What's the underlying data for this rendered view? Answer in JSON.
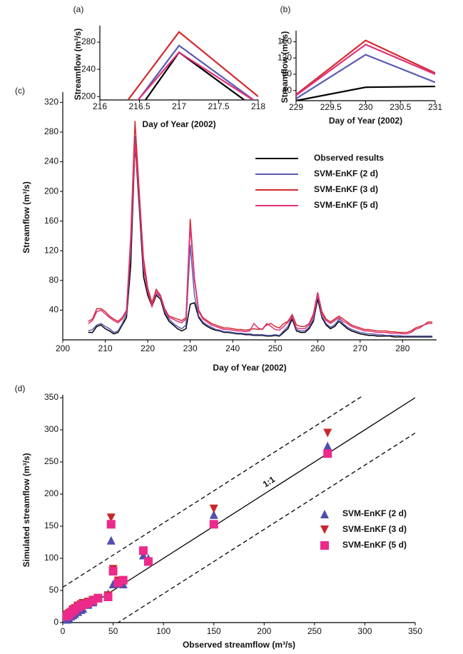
{
  "chart_data": [
    {
      "type": "line",
      "panel_label": "(a)",
      "x_label": "Day of Year (2002)",
      "y_label": "Streamflow (m³/s)",
      "x": [
        216,
        217,
        218
      ],
      "xlim": [
        216,
        218
      ],
      "xticks": [
        216,
        216.5,
        217,
        217.5,
        218
      ],
      "ylim": [
        195,
        300
      ],
      "yticks": [
        200,
        240,
        280
      ],
      "series": [
        {
          "color": "#000000",
          "values": [
            100,
            265,
            180
          ]
        },
        {
          "color": "#5b5bb5",
          "values": [
            120,
            275,
            190
          ]
        },
        {
          "color": "#d42a2f",
          "values": [
            140,
            295,
            200
          ]
        },
        {
          "color": "#e0307a",
          "values": [
            130,
            265,
            190
          ]
        }
      ]
    },
    {
      "type": "line",
      "panel_label": "(b)",
      "x_label": "Day of Year (2002)",
      "y_label": "Streamflow (m³/s)",
      "x": [
        229,
        230,
        231
      ],
      "xlim": [
        229,
        231
      ],
      "xticks": [
        229,
        229.5,
        230,
        230.5,
        231
      ],
      "ylim": [
        15,
        180
      ],
      "yticks": [
        40,
        80,
        120,
        160
      ],
      "series": [
        {
          "color": "#000000",
          "values": [
            15,
            48,
            50
          ]
        },
        {
          "color": "#5b5bb5",
          "values": [
            20,
            128,
            60
          ]
        },
        {
          "color": "#d42a2f",
          "values": [
            30,
            163,
            83
          ]
        },
        {
          "color": "#e0307a",
          "values": [
            28,
            153,
            80
          ]
        }
      ]
    },
    {
      "type": "line",
      "panel_label": "(c)",
      "x_label": "Day of Year (2002)",
      "y_label": "Streamflow (m³/s)",
      "legend": "right",
      "x": [
        206,
        207,
        208,
        209,
        210,
        211,
        212,
        213,
        214,
        215,
        216,
        217,
        218,
        219,
        220,
        221,
        222,
        223,
        224,
        225,
        226,
        227,
        228,
        229,
        230,
        231,
        232,
        233,
        234,
        235,
        236,
        237,
        238,
        239,
        240,
        241,
        242,
        243,
        244,
        245,
        246,
        247,
        248,
        249,
        250,
        251,
        252,
        253,
        254,
        255,
        256,
        257,
        258,
        259,
        260,
        261,
        262,
        263,
        264,
        265,
        266,
        267,
        268,
        269,
        270,
        271,
        272,
        273,
        274,
        275,
        276,
        277,
        278,
        279,
        280,
        281,
        282,
        283,
        284,
        285,
        286,
        287
      ],
      "xlim": [
        200,
        288
      ],
      "xticks": [
        200,
        210,
        220,
        230,
        240,
        250,
        260,
        270,
        280
      ],
      "ylim": [
        0,
        330
      ],
      "yticks": [
        40,
        80,
        120,
        160,
        200,
        240,
        280,
        320
      ],
      "series": [
        {
          "name": "Observed results",
          "color": "#000000",
          "values": [
            10,
            10,
            18,
            20,
            15,
            12,
            8,
            10,
            20,
            30,
            100,
            265,
            180,
            85,
            60,
            45,
            60,
            55,
            35,
            25,
            20,
            15,
            12,
            15,
            48,
            50,
            30,
            22,
            18,
            15,
            13,
            12,
            10,
            10,
            9,
            8,
            8,
            7,
            7,
            6,
            6,
            6,
            5,
            5,
            6,
            5,
            10,
            15,
            28,
            12,
            10,
            10,
            15,
            25,
            55,
            30,
            20,
            15,
            18,
            25,
            20,
            15,
            12,
            10,
            8,
            7,
            6,
            6,
            5,
            5,
            5,
            5,
            4,
            4,
            4,
            4,
            4,
            4,
            4,
            4,
            4,
            4
          ]
        },
        {
          "name": "SVM-EnKF (2 d)",
          "color": "#5b5bb5",
          "values": [
            12,
            14,
            20,
            22,
            18,
            15,
            10,
            12,
            22,
            35,
            120,
            275,
            190,
            95,
            65,
            48,
            62,
            58,
            38,
            28,
            22,
            18,
            15,
            20,
            128,
            60,
            32,
            24,
            20,
            17,
            14,
            13,
            11,
            11,
            10,
            9,
            9,
            8,
            8,
            7,
            7,
            7,
            6,
            6,
            7,
            6,
            12,
            18,
            32,
            14,
            12,
            12,
            17,
            28,
            60,
            32,
            22,
            17,
            20,
            28,
            22,
            17,
            14,
            12,
            10,
            9,
            8,
            8,
            7,
            7,
            6,
            6,
            6,
            6,
            5,
            5,
            5,
            5,
            5,
            5,
            5,
            5
          ]
        },
        {
          "name": "SVM-EnKF (3 d)",
          "color": "#d42a2f",
          "values": [
            25,
            28,
            42,
            42,
            38,
            32,
            28,
            25,
            30,
            40,
            140,
            295,
            200,
            110,
            70,
            50,
            68,
            60,
            42,
            32,
            30,
            28,
            26,
            30,
            163,
            83,
            40,
            30,
            26,
            22,
            20,
            18,
            16,
            16,
            15,
            14,
            14,
            13,
            14,
            15,
            14,
            15,
            20,
            22,
            18,
            16,
            22,
            25,
            34,
            20,
            18,
            18,
            22,
            35,
            64,
            38,
            28,
            24,
            28,
            32,
            28,
            24,
            20,
            18,
            16,
            14,
            14,
            13,
            12,
            12,
            12,
            11,
            11,
            10,
            10,
            10,
            12,
            16,
            18,
            20,
            24,
            24
          ]
        },
        {
          "name": "SVM-EnKF (5 d)",
          "color": "#e0307a",
          "values": [
            22,
            26,
            38,
            40,
            35,
            30,
            26,
            23,
            28,
            38,
            130,
            265,
            190,
            100,
            65,
            45,
            65,
            58,
            40,
            30,
            28,
            25,
            23,
            28,
            153,
            80,
            38,
            28,
            24,
            20,
            18,
            16,
            14,
            14,
            13,
            12,
            12,
            11,
            12,
            22,
            16,
            14,
            22,
            18,
            14,
            13,
            18,
            24,
            30,
            16,
            15,
            15,
            20,
            32,
            62,
            35,
            26,
            22,
            26,
            30,
            25,
            22,
            18,
            16,
            14,
            12,
            12,
            11,
            10,
            10,
            10,
            9,
            9,
            9,
            8,
            8,
            10,
            14,
            16,
            20,
            22,
            22
          ]
        }
      ]
    },
    {
      "type": "scatter",
      "panel_label": "(d)",
      "x_label": "Observed streamflow (m³/s)",
      "y_label": "Simulated streamflow (m³/s)",
      "legend": "right",
      "x": [
        4,
        6,
        8,
        10,
        12,
        15,
        18,
        20,
        25,
        30,
        35,
        45,
        48,
        50,
        55,
        60,
        80,
        85,
        150,
        263
      ],
      "xlim": [
        0,
        350
      ],
      "xticks": [
        0,
        50,
        100,
        150,
        200,
        250,
        300,
        350
      ],
      "ylim": [
        0,
        350
      ],
      "yticks": [
        0,
        50,
        100,
        150,
        200,
        250,
        300,
        350
      ],
      "reference_lines": [
        {
          "slope": 1,
          "intercept": 0,
          "style": "solid",
          "label": "1:1"
        },
        {
          "slope": 1,
          "intercept": 55,
          "style": "dashed"
        },
        {
          "slope": 1,
          "intercept": -55,
          "style": "dashed"
        }
      ],
      "series": [
        {
          "name": "SVM-EnKF (2 d)",
          "color": "#4f4fb0",
          "marker": "triangle-up",
          "values": [
            5,
            7,
            10,
            12,
            14,
            17,
            20,
            22,
            28,
            32,
            38,
            45,
            128,
            60,
            62,
            60,
            105,
            100,
            168,
            275
          ]
        },
        {
          "name": "SVM-EnKF (3 d)",
          "color": "#c8262b",
          "marker": "triangle-down",
          "values": [
            12,
            14,
            16,
            20,
            22,
            26,
            28,
            30,
            32,
            35,
            38,
            42,
            163,
            83,
            65,
            64,
            110,
            95,
            177,
            295
          ]
        },
        {
          "name": "SVM-EnKF (5 d)",
          "color": "#ec2a8c",
          "marker": "square",
          "values": [
            10,
            12,
            15,
            18,
            20,
            24,
            26,
            28,
            30,
            34,
            38,
            40,
            153,
            80,
            62,
            66,
            112,
            95,
            153,
            263
          ]
        }
      ]
    }
  ]
}
